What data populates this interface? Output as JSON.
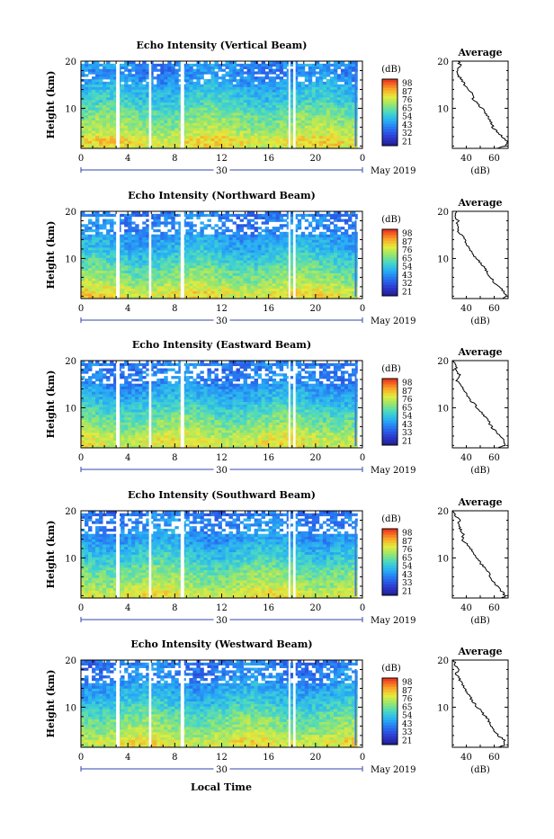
{
  "figure": {
    "xlabel": "Local Time",
    "month_label": "May 2019",
    "date_label": "30",
    "colorbar_unit": "(dB)",
    "average_title": "Average",
    "average_xlabel": "(dB)",
    "height_label": "Height (km)"
  },
  "chart_data": [
    {
      "type": "heatmap",
      "title": "Echo Intensity (Vertical Beam)",
      "ylabel": "Height (km)",
      "xlabel": "",
      "x_ticks": [
        "0",
        "4",
        "8",
        "12",
        "16",
        "20",
        "0"
      ],
      "x_range_hours": [
        0,
        24
      ],
      "y_ticks": [
        "10",
        "20"
      ],
      "y_range_km": [
        1.5,
        20
      ],
      "colorbar_levels": [
        "21",
        "32",
        "43",
        "54",
        "65",
        "76",
        "87",
        "98"
      ],
      "data_gaps_hours": [
        [
          3.0,
          3.3
        ],
        [
          5.8,
          6.0
        ],
        [
          8.5,
          8.8
        ],
        [
          17.7,
          17.85
        ],
        [
          18.1,
          18.3
        ],
        [
          23.6,
          24
        ]
      ],
      "profile": {
        "x_ticks": [
          "40",
          "60"
        ],
        "x_range_db": [
          30,
          70
        ],
        "heights_km": [
          1.5,
          2,
          3,
          4,
          5,
          6,
          7,
          8,
          9,
          10,
          11,
          12,
          13,
          14,
          15,
          16,
          17,
          18,
          19,
          20
        ],
        "values_db": [
          62,
          68,
          69,
          66,
          62,
          59,
          58,
          56,
          54,
          51,
          48,
          45,
          45,
          42,
          39,
          37,
          34,
          33,
          36,
          34
        ]
      }
    },
    {
      "type": "heatmap",
      "title": "Echo Intensity (Northward Beam)",
      "ylabel": "Height (km)",
      "xlabel": "",
      "x_ticks": [
        "0",
        "4",
        "8",
        "12",
        "16",
        "20",
        "0"
      ],
      "x_range_hours": [
        0,
        24
      ],
      "y_ticks": [
        "10",
        "20"
      ],
      "y_range_km": [
        1.5,
        20
      ],
      "colorbar_levels": [
        "21",
        "32",
        "43",
        "54",
        "65",
        "76",
        "87",
        "98"
      ],
      "data_gaps_hours": [
        [
          3.0,
          3.3
        ],
        [
          5.8,
          6.0
        ],
        [
          8.5,
          8.8
        ],
        [
          17.7,
          17.85
        ],
        [
          18.1,
          18.3
        ],
        [
          23.6,
          24
        ]
      ],
      "profile": {
        "x_ticks": [
          "40",
          "60"
        ],
        "x_range_db": [
          30,
          70
        ],
        "heights_km": [
          1.5,
          2,
          3,
          4,
          5,
          6,
          7,
          8,
          9,
          10,
          11,
          12,
          13,
          14,
          15,
          16,
          17,
          18,
          19,
          20
        ],
        "values_db": [
          66,
          69,
          67,
          64,
          60,
          57,
          55,
          53,
          50,
          47,
          45,
          42,
          40,
          39,
          36,
          34,
          33,
          34,
          32,
          33
        ]
      }
    },
    {
      "type": "heatmap",
      "title": "Echo Intensity (Eastward Beam)",
      "ylabel": "Height (km)",
      "xlabel": "",
      "x_ticks": [
        "0",
        "4",
        "8",
        "12",
        "16",
        "20",
        "0"
      ],
      "x_range_hours": [
        0,
        24
      ],
      "y_ticks": [
        "10",
        "20"
      ],
      "y_range_km": [
        1.5,
        20
      ],
      "colorbar_levels": [
        "21",
        "33",
        "43",
        "54",
        "65",
        "76",
        "87",
        "98"
      ],
      "data_gaps_hours": [
        [
          3.0,
          3.3
        ],
        [
          5.8,
          6.0
        ],
        [
          8.5,
          8.8
        ],
        [
          17.7,
          17.85
        ],
        [
          18.1,
          18.3
        ],
        [
          23.6,
          24
        ]
      ],
      "profile": {
        "x_ticks": [
          "40",
          "60"
        ],
        "x_range_db": [
          30,
          70
        ],
        "heights_km": [
          1.5,
          2,
          3,
          4,
          5,
          6,
          7,
          8,
          9,
          10,
          11,
          12,
          13,
          14,
          15,
          16,
          17,
          18,
          19,
          20
        ],
        "values_db": [
          63,
          67,
          67,
          64,
          61,
          58,
          56,
          54,
          51,
          48,
          45,
          42,
          40,
          38,
          35,
          33,
          35,
          32,
          33,
          31
        ]
      }
    },
    {
      "type": "heatmap",
      "title": "Echo Intensity (Southward Beam)",
      "ylabel": "Height (km)",
      "xlabel": "",
      "x_ticks": [
        "0",
        "4",
        "8",
        "12",
        "16",
        "20",
        "0"
      ],
      "x_range_hours": [
        0,
        24
      ],
      "y_ticks": [
        "10",
        "20"
      ],
      "y_range_km": [
        1.5,
        20
      ],
      "colorbar_levels": [
        "21",
        "33",
        "43",
        "54",
        "65",
        "76",
        "87",
        "98"
      ],
      "data_gaps_hours": [
        [
          3.0,
          3.3
        ],
        [
          5.8,
          6.0
        ],
        [
          8.5,
          8.8
        ],
        [
          17.7,
          17.85
        ],
        [
          18.1,
          18.3
        ],
        [
          23.6,
          24
        ]
      ],
      "profile": {
        "x_ticks": [
          "40",
          "60"
        ],
        "x_range_db": [
          30,
          70
        ],
        "heights_km": [
          1.5,
          2,
          3,
          4,
          5,
          6,
          7,
          8,
          9,
          10,
          11,
          12,
          13,
          14,
          15,
          16,
          17,
          18,
          19,
          20
        ],
        "values_db": [
          66,
          68,
          65,
          62,
          59,
          57,
          56,
          53,
          50,
          47,
          45,
          43,
          40,
          37,
          38,
          36,
          34,
          35,
          32,
          30
        ]
      }
    },
    {
      "type": "heatmap",
      "title": "Echo Intensity (Westward Beam)",
      "ylabel": "Height (km)",
      "xlabel": "Local Time",
      "x_ticks": [
        "0",
        "4",
        "8",
        "12",
        "16",
        "20",
        "0"
      ],
      "x_range_hours": [
        0,
        24
      ],
      "y_ticks": [
        "10",
        "20"
      ],
      "y_range_km": [
        1.5,
        20
      ],
      "colorbar_levels": [
        "21",
        "33",
        "43",
        "54",
        "65",
        "76",
        "87",
        "98"
      ],
      "data_gaps_hours": [
        [
          3.0,
          3.3
        ],
        [
          5.8,
          6.0
        ],
        [
          8.5,
          8.8
        ],
        [
          17.7,
          17.85
        ],
        [
          18.1,
          18.3
        ],
        [
          23.6,
          24
        ]
      ],
      "profile": {
        "x_ticks": [
          "40",
          "60"
        ],
        "x_range_db": [
          30,
          70
        ],
        "heights_km": [
          1.5,
          2,
          3,
          4,
          5,
          6,
          7,
          8,
          9,
          10,
          11,
          12,
          13,
          14,
          15,
          16,
          17,
          18,
          19,
          20
        ],
        "values_db": [
          63,
          68,
          67,
          63,
          60,
          57,
          56,
          54,
          51,
          48,
          45,
          43,
          41,
          39,
          37,
          35,
          33,
          34,
          32,
          31
        ]
      }
    }
  ]
}
